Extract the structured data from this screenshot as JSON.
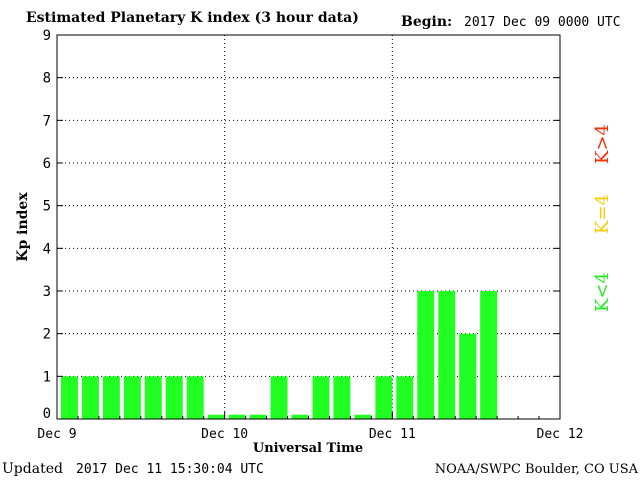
{
  "chart_data": {
    "type": "bar",
    "title": "Estimated Planetary K index (3 hour data)",
    "begin_label": "Begin:",
    "begin_value": "2017 Dec 09 0000 UTC",
    "xlabel": "Universal Time",
    "ylabel": "Kp index",
    "ylim": [
      0,
      9
    ],
    "yticks": [
      "0",
      "1",
      "2",
      "3",
      "4",
      "5",
      "6",
      "7",
      "8",
      "9"
    ],
    "xticks": [
      "Dec 9",
      "Dec 10",
      "Dec 11",
      "Dec 12"
    ],
    "bins_per_day": 8,
    "values": [
      1,
      1,
      1,
      1,
      1,
      1,
      1,
      0.1,
      0.1,
      0.1,
      1,
      0.1,
      1,
      1,
      0.1,
      1,
      1,
      3,
      3,
      2,
      3
    ],
    "bar_color": "#22ff22",
    "grid": true,
    "legend": [
      {
        "label": "K<4",
        "color": "#22ee22"
      },
      {
        "label": "K=4",
        "color": "#ffcc00"
      },
      {
        "label": "K>4",
        "color": "#ff2a00"
      }
    ]
  },
  "footer": {
    "updated_label": "Updated",
    "updated_value": "2017 Dec 11 15:30:04 UTC",
    "source": "NOAA/SWPC Boulder, CO USA"
  }
}
